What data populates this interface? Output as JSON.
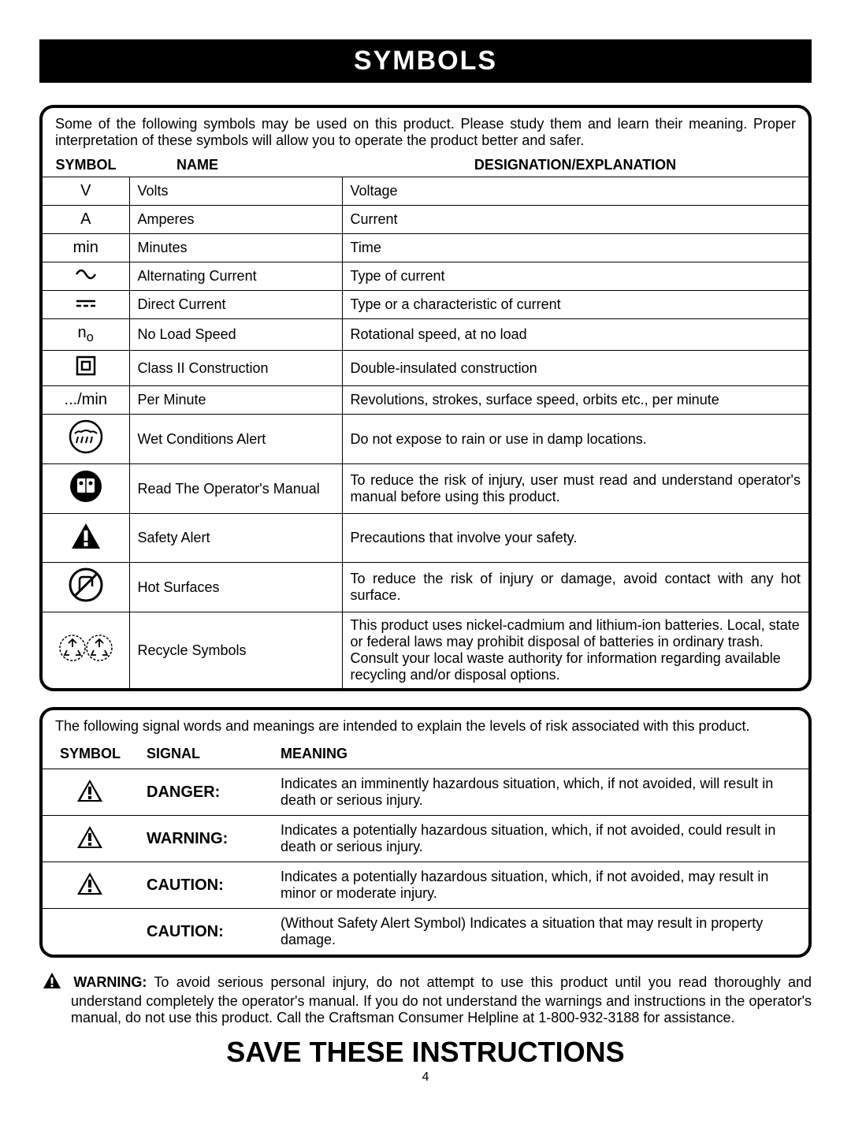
{
  "header": "SYMBOLS",
  "intro": "Some of the following symbols may be used on this product. Please study them and learn their meaning. Proper interpretation of these symbols will allow you to operate the product better and safer.",
  "cols": {
    "symbol": "SYMBOL",
    "name": "NAME",
    "desig": "DESIGNATION/EXPLANATION"
  },
  "rows": [
    {
      "sym_text": "V",
      "name": "Volts",
      "desc": "Voltage"
    },
    {
      "sym_text": "A",
      "name": "Amperes",
      "desc": "Current"
    },
    {
      "sym_text": "min",
      "name": "Minutes",
      "desc": "Time"
    },
    {
      "sym_svg": "ac",
      "name": "Alternating Current",
      "desc": "Type of current"
    },
    {
      "sym_svg": "dc",
      "name": "Direct Current",
      "desc": "Type or a characteristic of current"
    },
    {
      "sym_html": "n<sub>o</sub>",
      "name": "No Load Speed",
      "desc": "Rotational speed, at no load"
    },
    {
      "sym_svg": "class2",
      "name": "Class II Construction",
      "desc": "Double-insulated construction"
    },
    {
      "sym_text": ".../min",
      "name": "Per Minute",
      "desc": "Revolutions, strokes, surface speed, orbits etc., per minute"
    },
    {
      "sym_svg": "wet",
      "name": "Wet Conditions Alert",
      "desc": "Do not expose to rain or use in damp locations.",
      "tall": true
    },
    {
      "sym_svg": "manual",
      "name": "Read The Operator's Manual",
      "desc": "To reduce the risk of injury, user must read and understand operator's manual before using this product.",
      "tall": true,
      "justify": true
    },
    {
      "sym_svg": "alert",
      "name": "Safety Alert",
      "desc": "Precautions that involve your safety.",
      "tall": true
    },
    {
      "sym_svg": "hot",
      "name": "Hot Surfaces",
      "desc": "To reduce the risk of injury or damage, avoid contact with any hot surface.",
      "tall": true,
      "justify": true
    },
    {
      "sym_svg": "recycle",
      "name": "Recycle Symbols",
      "desc": "This product uses nickel-cadmium and lithium-ion batteries. Local, state or federal laws may prohibit disposal of batteries in ordinary trash. Consult your local waste authority for information regarding available recycling and/or disposal options.",
      "xtall": true
    }
  ],
  "intro2": "The following signal words and meanings are intended to explain the levels of risk associated with this product.",
  "cols2": {
    "symbol": "SYMBOL",
    "signal": "SIGNAL",
    "meaning": "MEANING"
  },
  "signals": [
    {
      "icon": true,
      "word": "DANGER:",
      "meaning": "Indicates an imminently hazardous situation, which, if not avoided, will result in death or serious injury."
    },
    {
      "icon": true,
      "word": "WARNING:",
      "meaning": "Indicates a potentially hazardous situation, which, if not avoided, could result in death or serious injury."
    },
    {
      "icon": true,
      "word": "CAUTION:",
      "meaning": "Indicates a potentially hazardous situation, which, if not avoided, may result in minor or moderate injury."
    },
    {
      "icon": false,
      "word": "CAUTION:",
      "meaning": "(Without Safety Alert Symbol) Indicates a situation that may result in property damage."
    }
  ],
  "warning_label": "WARNING:",
  "warning_body": " To avoid serious personal injury, do not attempt to use this product until you read thoroughly and understand completely the operator's manual. If you do not understand the warnings and instructions in the operator's manual, do not use this product. Call the Craftsman Consumer Helpline at 1-800-932-3188 for assistance.",
  "save": "SAVE THESE INSTRUCTIONS",
  "page": "4",
  "colors": {
    "fg": "#000000",
    "bg": "#ffffff"
  }
}
